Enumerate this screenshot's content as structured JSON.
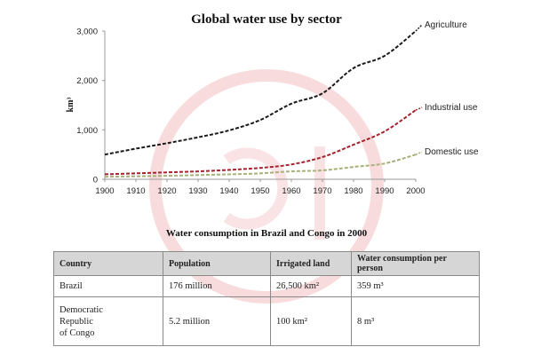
{
  "chart_data": {
    "type": "line",
    "title": "Global water use by sector",
    "xlabel": "",
    "ylabel": "km³",
    "x": [
      1900,
      1910,
      1920,
      1930,
      1940,
      1950,
      1960,
      1970,
      1980,
      1990,
      2000
    ],
    "xticks": [
      "1900",
      "1910",
      "1920",
      "1930",
      "1940",
      "1950",
      "1960",
      "1970",
      "1980",
      "1990",
      "2000"
    ],
    "yticks": [
      "0",
      "1,000",
      "2,000",
      "3,000"
    ],
    "ytick_values": [
      0,
      1000,
      2000,
      3000
    ],
    "ylim": [
      0,
      3000
    ],
    "xlim": [
      1900,
      2000
    ],
    "grid": false,
    "legend": "inline-right",
    "series": [
      {
        "name": "Agriculture",
        "color": "#1a1a1a",
        "values": [
          500,
          620,
          730,
          850,
          990,
          1200,
          1530,
          1740,
          2250,
          2500,
          3000
        ]
      },
      {
        "name": "Industrial use",
        "color": "#a3222e",
        "values": [
          100,
          120,
          140,
          160,
          190,
          230,
          300,
          450,
          700,
          970,
          1400
        ]
      },
      {
        "name": "Domestic use",
        "color": "#a8b07a",
        "values": [
          50,
          60,
          70,
          85,
          100,
          120,
          160,
          180,
          250,
          320,
          500
        ]
      }
    ]
  },
  "table": {
    "title": "Water consumption in Brazil and Congo in 2000",
    "headers": [
      "Country",
      "Population",
      "Irrigated land",
      "Water consumption per person"
    ],
    "rows": [
      [
        "Brazil",
        "176 million",
        "26,500 km²",
        "359 m³"
      ],
      [
        "Democratic Republic of Congo",
        "5.2 million",
        "100 km²",
        "8 m³"
      ]
    ],
    "congo_lines": [
      "Democratic",
      "Republic",
      "of Congo"
    ]
  },
  "watermark": {
    "color": "#f4c6c8"
  }
}
